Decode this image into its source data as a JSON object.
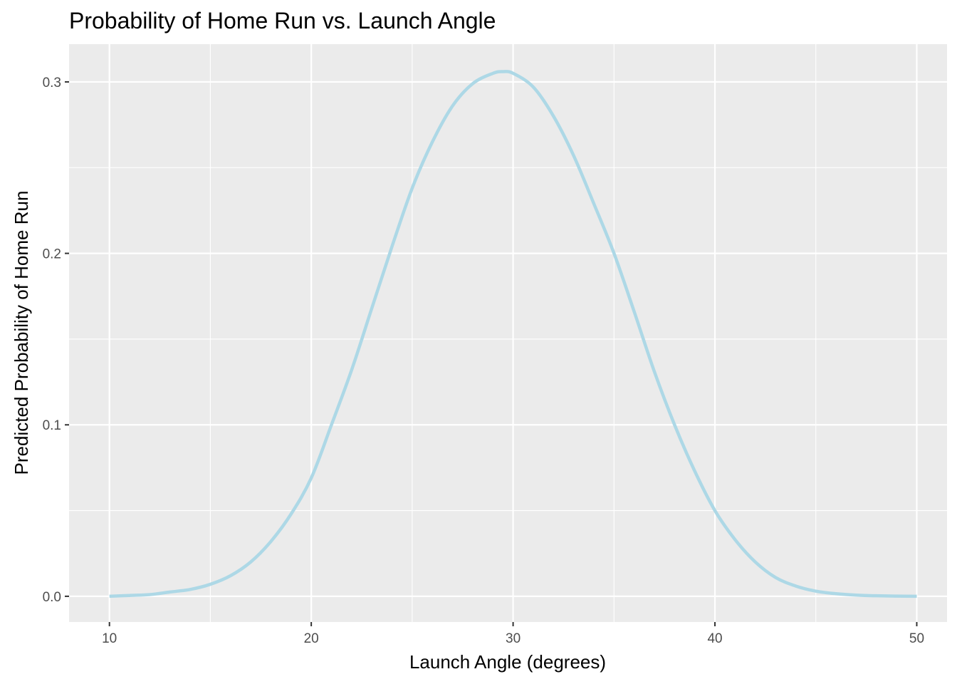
{
  "chart_data": {
    "type": "line",
    "title": "Probability of Home Run vs. Launch Angle",
    "xlabel": "Launch Angle (degrees)",
    "ylabel": "Predicted Probability of Home Run",
    "xlim": [
      8,
      51.5
    ],
    "ylim": [
      -0.015,
      0.322
    ],
    "x_ticks": [
      10,
      20,
      30,
      40,
      50
    ],
    "x_tick_labels": [
      "10",
      "20",
      "30",
      "40",
      "50"
    ],
    "x_minor_ticks": [
      15,
      25,
      35,
      45
    ],
    "y_ticks": [
      0.0,
      0.1,
      0.2,
      0.3
    ],
    "y_tick_labels": [
      "0.0",
      "0.1",
      "0.2",
      "0.3"
    ],
    "y_minor_ticks": [
      0.05,
      0.15,
      0.25
    ],
    "grid": true,
    "legend": "none",
    "colors": {
      "panel_background": "#ebebeb",
      "grid_line": "#ffffff",
      "series_line": "#add8e6",
      "tick_mark": "#333333"
    },
    "series": [
      {
        "x": [
          10,
          11,
          12,
          13,
          14,
          15,
          16,
          17,
          18,
          19,
          20,
          21,
          22,
          23,
          24,
          25,
          26,
          27,
          28,
          29,
          29.5,
          30,
          31,
          32,
          33,
          34,
          35,
          36,
          37,
          38,
          39,
          40,
          41,
          42,
          43,
          44,
          45,
          46,
          47,
          48,
          49,
          50
        ],
        "y": [
          0.0,
          0.0005,
          0.001,
          0.0025,
          0.004,
          0.007,
          0.012,
          0.02,
          0.032,
          0.048,
          0.069,
          0.1,
          0.132,
          0.168,
          0.204,
          0.238,
          0.265,
          0.286,
          0.299,
          0.305,
          0.306,
          0.305,
          0.297,
          0.28,
          0.257,
          0.229,
          0.2,
          0.166,
          0.131,
          0.1,
          0.073,
          0.05,
          0.033,
          0.02,
          0.011,
          0.006,
          0.003,
          0.0015,
          0.0007,
          0.0003,
          0.0001,
          0.0
        ]
      }
    ]
  }
}
